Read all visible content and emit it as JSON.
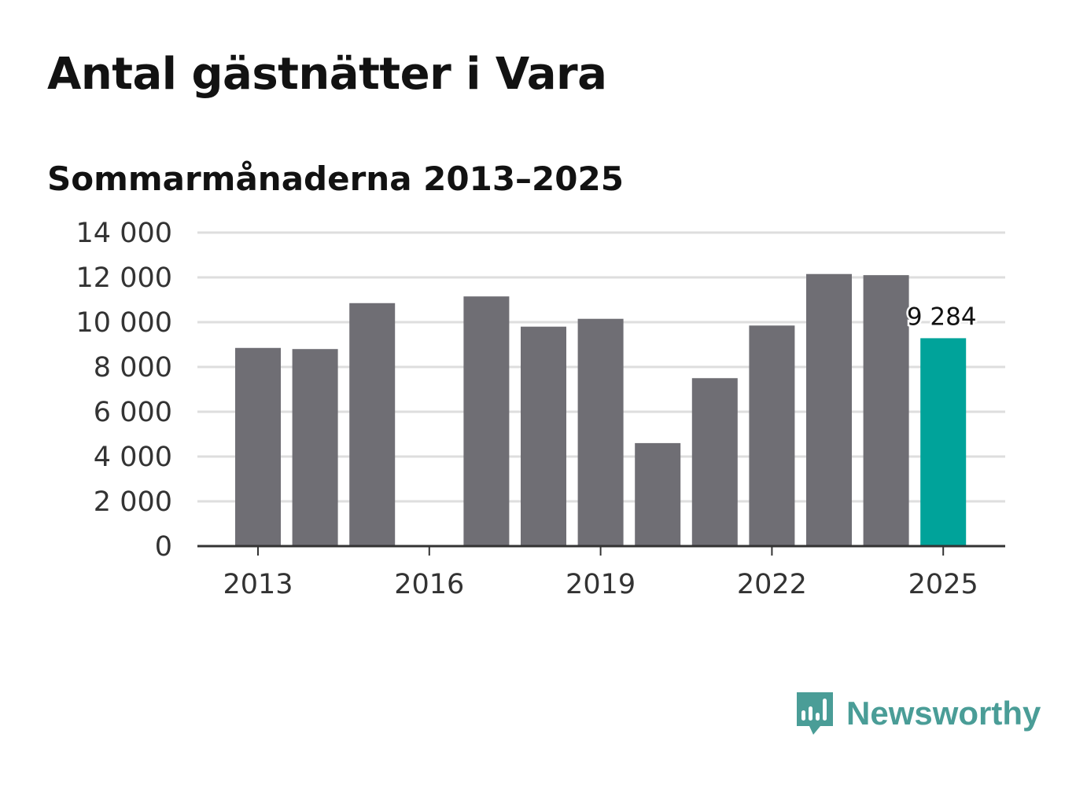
{
  "title": "Antal gästnätter i Vara",
  "subtitle": "Sommarmånaderna 2013–2025",
  "brand": {
    "name": "Newsworthy",
    "logo_icon": "bar-chart-speech-bubble-icon",
    "color": "#4a9d97"
  },
  "colors": {
    "bar": "#6f6e74",
    "highlight": "#00a39a",
    "grid": "#dedede",
    "axis": "#333333",
    "text": "#333333"
  },
  "chart_data": {
    "type": "bar",
    "title": "Antal gästnätter i Vara",
    "subtitle": "Sommarmånaderna 2013–2025",
    "xlabel": "",
    "ylabel": "",
    "categories": [
      2013,
      2014,
      2015,
      2016,
      2017,
      2018,
      2019,
      2020,
      2021,
      2022,
      2023,
      2024,
      2025
    ],
    "values": [
      8850,
      8800,
      10850,
      null,
      11150,
      9800,
      10150,
      4600,
      7500,
      9850,
      12150,
      12100,
      9284
    ],
    "highlight_category": 2025,
    "data_labels": [
      {
        "category": 2025,
        "text": "9 284"
      }
    ],
    "ylim": [
      0,
      14000
    ],
    "yticks": [
      {
        "value": 0,
        "label": "0"
      },
      {
        "value": 2000,
        "label": "2 000"
      },
      {
        "value": 4000,
        "label": "4 000"
      },
      {
        "value": 6000,
        "label": "6 000"
      },
      {
        "value": 8000,
        "label": "8 000"
      },
      {
        "value": 10000,
        "label": "10 000"
      },
      {
        "value": 12000,
        "label": "12 000"
      },
      {
        "value": 14000,
        "label": "14 000"
      }
    ],
    "xticks": [
      {
        "value": 2013,
        "label": "2013"
      },
      {
        "value": 2016,
        "label": "2016"
      },
      {
        "value": 2019,
        "label": "2019"
      },
      {
        "value": 2022,
        "label": "2022"
      },
      {
        "value": 2025,
        "label": "2025"
      }
    ],
    "grid": true,
    "legend": false
  }
}
